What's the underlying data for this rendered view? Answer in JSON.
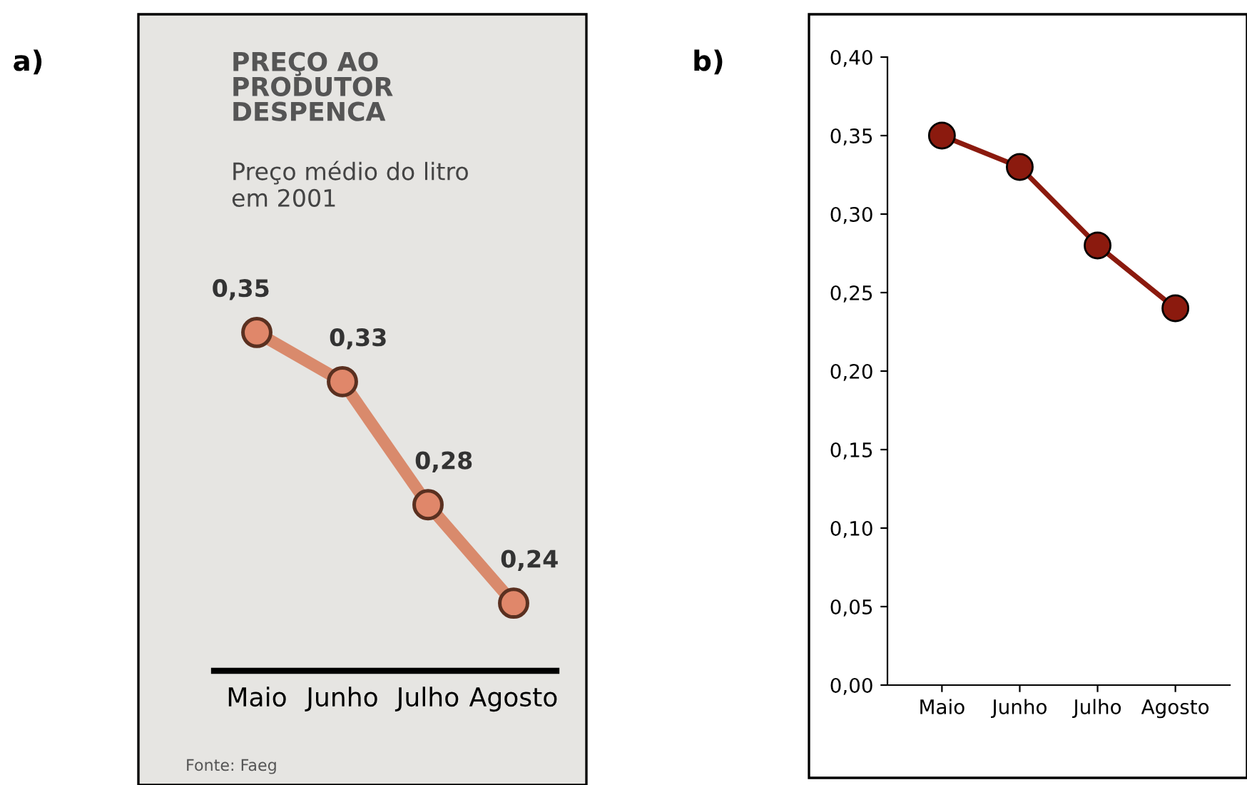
{
  "chart_data": [
    {
      "type": "line",
      "title": "PREÇO AO PRODUTOR DESPENCA",
      "subtitle": "Preço médio do litro em 2001",
      "annotations": [
        "a)",
        "Fonte: Faeg"
      ],
      "categories": [
        "Maio",
        "Junho",
        "Julho",
        "Agosto"
      ],
      "series": [
        {
          "color": "#d98a6c",
          "values": [
            0.35,
            0.33,
            0.28,
            0.24
          ],
          "value_labels": [
            "0,35",
            "0,33",
            "0,28",
            "0,24"
          ]
        }
      ],
      "tick_labels": "x",
      "marker": "circle"
    },
    {
      "type": "line",
      "annotations": [
        "b)"
      ],
      "categories": [
        "Maio",
        "Junho",
        "Julho",
        "Agosto"
      ],
      "series": [
        {
          "color": "#8b1a0e",
          "values": [
            0.35,
            0.33,
            0.28,
            0.24
          ]
        }
      ],
      "ylim": [
        0,
        0.4
      ],
      "yticks": [
        {
          "value": 0,
          "label": "0,00"
        },
        {
          "value": 0.05,
          "label": "0,05"
        },
        {
          "value": 0.1,
          "label": "0,10"
        },
        {
          "value": 0.15,
          "label": "0,15"
        },
        {
          "value": 0.2,
          "label": "0,20"
        },
        {
          "value": 0.25,
          "label": "0,25"
        },
        {
          "value": 0.3,
          "label": "0,30"
        },
        {
          "value": 0.35,
          "label": "0,35"
        },
        {
          "value": 0.4,
          "label": "0,40"
        }
      ],
      "marker": "circle"
    }
  ]
}
